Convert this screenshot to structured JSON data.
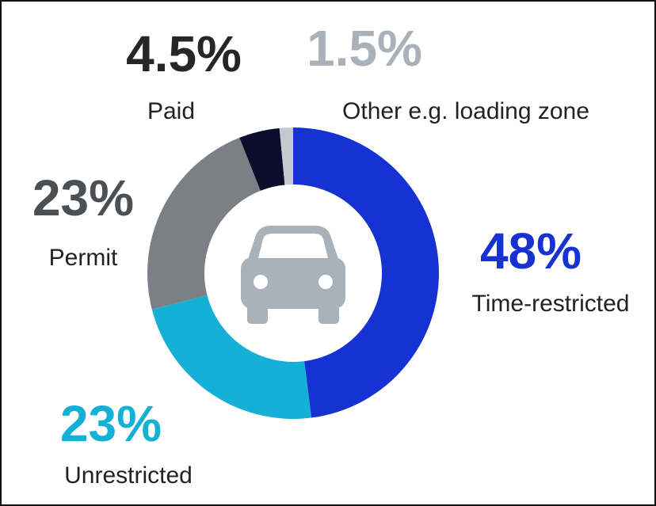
{
  "chart_data": {
    "type": "donut",
    "categories": [
      "Time-restricted",
      "Unrestricted",
      "Permit",
      "Paid",
      "Other e.g. loading zone"
    ],
    "values": [
      48,
      23,
      23,
      4.5,
      1.5
    ],
    "value_labels": [
      "48%",
      "23%",
      "23%",
      "4.5%",
      "1.5%"
    ],
    "colors": [
      "#1732d2",
      "#14b0d6",
      "#7b8087",
      "#0a0d2c",
      "#c3c9ce"
    ],
    "label_colors": [
      "#1732d2",
      "#14b0d6",
      "#4b5056",
      "#262626",
      "#a9b2ba"
    ]
  }
}
